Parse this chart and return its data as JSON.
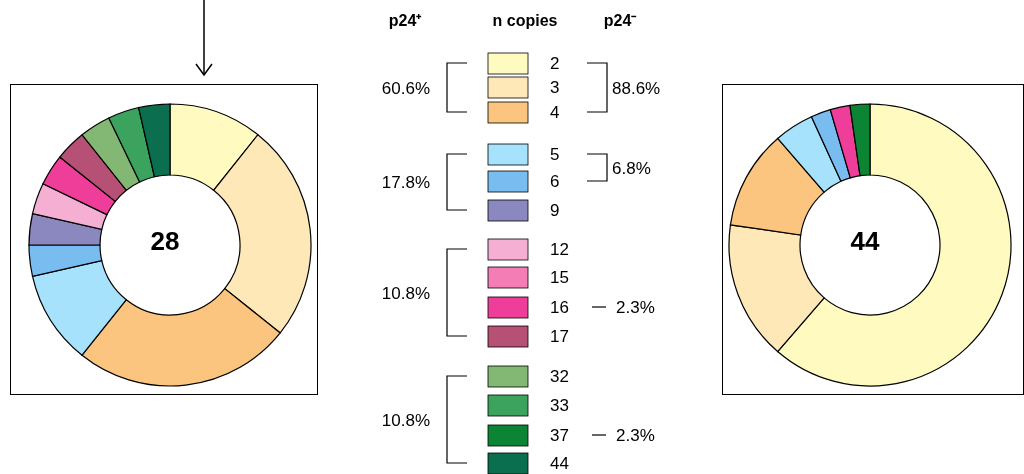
{
  "chart_data": {
    "type": "donut",
    "legend_title": "n copies",
    "legend": "right",
    "categories": [
      "2",
      "3",
      "4",
      "5",
      "6",
      "9",
      "12",
      "15",
      "16",
      "17",
      "32",
      "33",
      "37",
      "44"
    ],
    "colors": [
      "#fffbc0",
      "#fee8b8",
      "#fbc580",
      "#a6e2fb",
      "#79bdf0",
      "#8b88c0",
      "#f4afd3",
      "#f47db5",
      "#ee3e9a",
      "#b65075",
      "#82b874",
      "#3ca35e",
      "#0b8533",
      "#0a6e4f"
    ],
    "series": [
      {
        "name": "p24⁺",
        "values": [
          10.71,
          25,
          25,
          10.71,
          3.57,
          3.57,
          3.57,
          0,
          3.57,
          3.57,
          3.57,
          3.57,
          0,
          3.57
        ]
      },
      {
        "name": "p24⁻",
        "values": [
          61.36,
          15.91,
          11.36,
          4.55,
          2.27,
          0,
          0,
          0,
          2.27,
          0,
          0,
          0,
          2.27,
          0
        ]
      }
    ],
    "annotations": [
      "28",
      "60.6%",
      "17.8%",
      "10.8%",
      "10.8%",
      "44",
      "88.6%",
      "6.8%",
      "2.3%",
      "2.3%"
    ]
  }
}
